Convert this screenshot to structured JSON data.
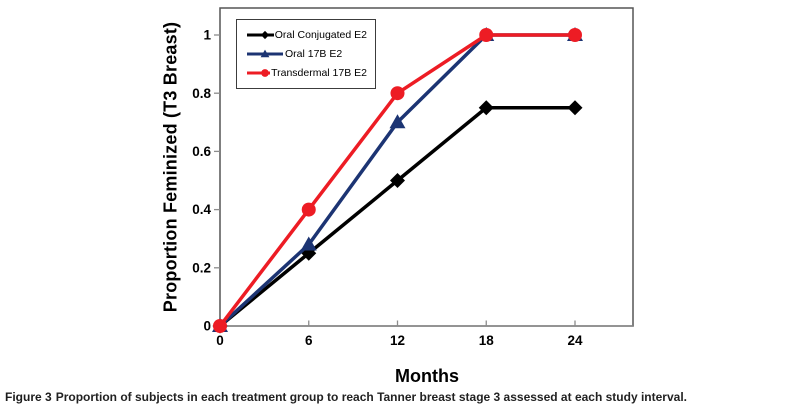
{
  "figure": {
    "caption_label": "Figure 3",
    "caption_text": "Proportion of subjects in each treatment group to reach Tanner breast stage 3 assessed at each study interval."
  },
  "chart_data": {
    "type": "line",
    "title": "",
    "xlabel": "Months",
    "ylabel": "Proportion Feminized (T3 Breast)",
    "x": [
      0,
      6,
      12,
      18,
      24
    ],
    "xtick_labels": [
      "0",
      "6",
      "12",
      "18",
      "24"
    ],
    "yticks": [
      0,
      0.2,
      0.4,
      0.6,
      0.8,
      1
    ],
    "ytick_labels": [
      "0",
      "0.2",
      "0.4",
      "0.6",
      "0.8",
      "1"
    ],
    "ylim": [
      0,
      1.09
    ],
    "grid": false,
    "legend_position": "top-left-inside",
    "series": [
      {
        "name": "Oral Conjugated E2",
        "marker": "diamond",
        "color": "#000000",
        "values": [
          0,
          0.25,
          0.5,
          0.75,
          0.75
        ]
      },
      {
        "name": "Oral 17B E2",
        "marker": "triangle",
        "color": "#1c3473",
        "values": [
          0,
          0.28,
          0.7,
          1.0,
          1.0
        ]
      },
      {
        "name": "Transdermal 17B E2",
        "marker": "circle",
        "color": "#ed1c24",
        "values": [
          0,
          0.4,
          0.8,
          1.0,
          1.0
        ]
      }
    ],
    "colors": {
      "axis": "#8c8c8c",
      "plot_border": "#555555",
      "text": "#000000"
    }
  }
}
